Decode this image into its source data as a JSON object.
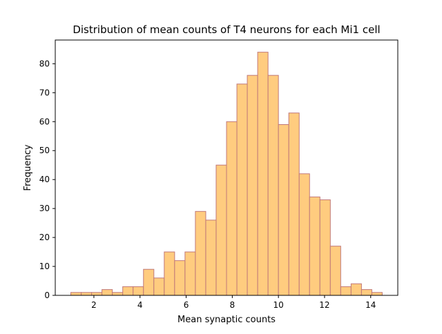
{
  "chart_data": {
    "type": "bar",
    "title": "Distribution of mean counts of T4 neurons for each Mi1 cell",
    "xlabel": "Mean synaptic counts",
    "ylabel": "Frequency",
    "xlim": [
      0.325,
      15.175
    ],
    "ylim": [
      0,
      88.2
    ],
    "x_ticks": [
      2,
      4,
      6,
      8,
      10,
      12,
      14
    ],
    "y_ticks": [
      0,
      10,
      20,
      30,
      40,
      50,
      60,
      70,
      80
    ],
    "bin_start": 1.0,
    "bin_width": 0.45,
    "bins": [
      {
        "x0": 1.0,
        "x1": 1.45,
        "value": 1
      },
      {
        "x0": 1.45,
        "x1": 1.9,
        "value": 1
      },
      {
        "x0": 1.9,
        "x1": 2.35,
        "value": 1
      },
      {
        "x0": 2.35,
        "x1": 2.8,
        "value": 2
      },
      {
        "x0": 2.8,
        "x1": 3.25,
        "value": 1
      },
      {
        "x0": 3.25,
        "x1": 3.7,
        "value": 3
      },
      {
        "x0": 3.7,
        "x1": 4.15,
        "value": 3
      },
      {
        "x0": 4.15,
        "x1": 4.6,
        "value": 9
      },
      {
        "x0": 4.6,
        "x1": 5.05,
        "value": 6
      },
      {
        "x0": 5.05,
        "x1": 5.5,
        "value": 15
      },
      {
        "x0": 5.5,
        "x1": 5.95,
        "value": 12
      },
      {
        "x0": 5.95,
        "x1": 6.4,
        "value": 15
      },
      {
        "x0": 6.4,
        "x1": 6.85,
        "value": 29
      },
      {
        "x0": 6.85,
        "x1": 7.3,
        "value": 26
      },
      {
        "x0": 7.3,
        "x1": 7.75,
        "value": 45
      },
      {
        "x0": 7.75,
        "x1": 8.2,
        "value": 60
      },
      {
        "x0": 8.2,
        "x1": 8.65,
        "value": 73
      },
      {
        "x0": 8.65,
        "x1": 9.1,
        "value": 76
      },
      {
        "x0": 9.1,
        "x1": 9.55,
        "value": 84
      },
      {
        "x0": 9.55,
        "x1": 10.0,
        "value": 76
      },
      {
        "x0": 10.0,
        "x1": 10.45,
        "value": 59
      },
      {
        "x0": 10.45,
        "x1": 10.9,
        "value": 63
      },
      {
        "x0": 10.9,
        "x1": 11.35,
        "value": 42
      },
      {
        "x0": 11.35,
        "x1": 11.8,
        "value": 34
      },
      {
        "x0": 11.8,
        "x1": 12.25,
        "value": 33
      },
      {
        "x0": 12.25,
        "x1": 12.7,
        "value": 17
      },
      {
        "x0": 12.7,
        "x1": 13.15,
        "value": 3
      },
      {
        "x0": 13.15,
        "x1": 13.6,
        "value": 4
      },
      {
        "x0": 13.6,
        "x1": 14.05,
        "value": 2
      },
      {
        "x0": 14.05,
        "x1": 14.5,
        "value": 1
      }
    ],
    "grid": false,
    "legend": "none",
    "colors": {
      "bar_fill": "#ffcc7f",
      "bar_edge": "#c07878",
      "axes": "#000000",
      "background": "#ffffff"
    }
  }
}
